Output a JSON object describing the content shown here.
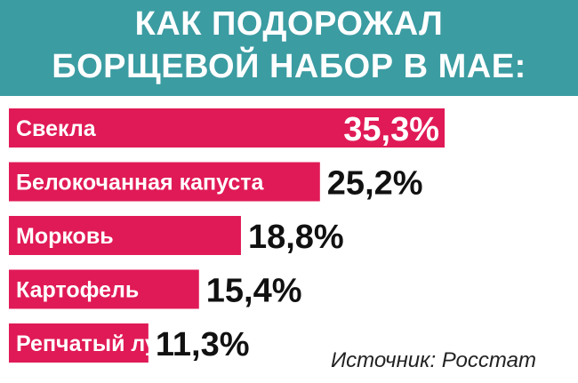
{
  "header": {
    "title_line1": "КАК ПОДОРОЖАЛ",
    "title_line2": "БОРЩЕВОЙ НАБОР В МАЕ:"
  },
  "source": "Источник: Росстат",
  "colors": {
    "header_bg": "#3b9ca2",
    "bar": "#e01a56",
    "label": "#ffffff",
    "value": "#111111"
  },
  "chart_data": {
    "type": "bar",
    "orientation": "horizontal",
    "categories": [
      "Свекла",
      "Белокочанная капуста",
      "Морковь",
      "Картофель",
      "Репчатый лук"
    ],
    "values": [
      35.3,
      25.2,
      18.8,
      15.4,
      11.3
    ],
    "value_labels": [
      "35,3%",
      "25,2%",
      "18,8%",
      "15,4%",
      "11,3%"
    ],
    "unit": "%",
    "xlim": [
      0,
      35.3
    ],
    "grid": false,
    "legend": "none"
  }
}
